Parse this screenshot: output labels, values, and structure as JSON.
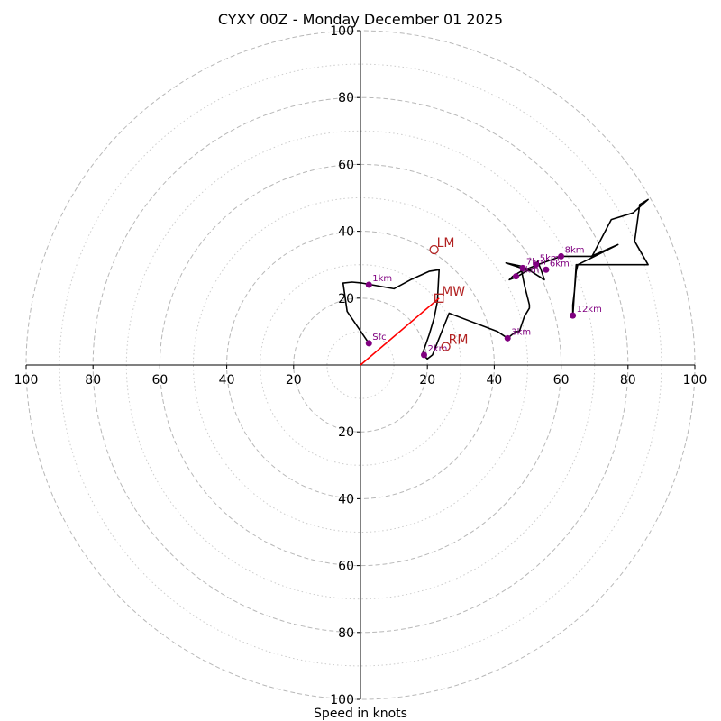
{
  "chart_data": {
    "type": "line",
    "title": "CYXY 00Z - Monday December 01 2025",
    "xlabel": "Speed in knots",
    "ylabel": "",
    "axis_range": [
      -100,
      100
    ],
    "ring_major": [
      20,
      40,
      60,
      80,
      100
    ],
    "ring_minor": [
      10,
      30,
      50,
      70,
      90
    ],
    "tick_labels_x": [
      "100",
      "80",
      "60",
      "40",
      "20",
      "20",
      "40",
      "60",
      "80",
      "100"
    ],
    "tick_values_x": [
      -100,
      -80,
      -60,
      -40,
      -20,
      20,
      40,
      60,
      80,
      100
    ],
    "tick_labels_y": [
      "100",
      "80",
      "60",
      "40",
      "20",
      "20",
      "40",
      "60",
      "80",
      "100"
    ],
    "tick_values_y": [
      100,
      80,
      60,
      40,
      20,
      -20,
      -40,
      -60,
      -80,
      -100
    ],
    "grid": true,
    "hodograph": {
      "color": "#000000",
      "points": [
        [
          2.5,
          6.5
        ],
        [
          -4,
          16
        ],
        [
          -5.2,
          24.5
        ],
        [
          -2.5,
          24.8
        ],
        [
          0.5,
          24.5
        ],
        [
          10,
          22.8
        ],
        [
          15,
          25.5
        ],
        [
          20.5,
          28
        ],
        [
          23.5,
          28.5
        ],
        [
          23,
          19
        ],
        [
          22,
          14
        ],
        [
          20.5,
          9
        ],
        [
          18.5,
          3.2
        ],
        [
          20,
          1.8
        ],
        [
          21.5,
          3
        ],
        [
          26.5,
          15.5
        ],
        [
          41,
          10
        ],
        [
          44,
          8
        ],
        [
          46.5,
          10
        ],
        [
          47.5,
          10
        ],
        [
          49,
          14.5
        ],
        [
          50.5,
          17
        ],
        [
          50.5,
          18
        ],
        [
          49,
          24
        ],
        [
          48,
          29
        ],
        [
          43.5,
          30.5
        ],
        [
          48.5,
          29.5
        ],
        [
          51,
          28
        ],
        [
          55,
          25.5
        ],
        [
          54,
          28.5
        ],
        [
          53,
          31
        ],
        [
          52,
          29
        ],
        [
          49.5,
          28
        ],
        [
          47,
          26.5
        ],
        [
          44.5,
          25.5
        ],
        [
          45.5,
          26.5
        ],
        [
          48,
          28
        ],
        [
          53,
          30
        ],
        [
          60,
          32.5
        ],
        [
          69,
          32.5
        ],
        [
          77,
          36
        ],
        [
          69,
          32
        ],
        [
          65,
          30
        ],
        [
          64.5,
          28
        ],
        [
          64,
          22
        ],
        [
          63.5,
          18
        ],
        [
          63.5,
          14.5
        ],
        [
          64.5,
          30
        ],
        [
          73,
          30
        ],
        [
          86,
          30
        ],
        [
          82,
          37
        ],
        [
          83.5,
          48
        ],
        [
          86,
          49.5
        ],
        [
          81.5,
          45.5
        ],
        [
          75,
          43.5
        ],
        [
          69,
          32
        ]
      ]
    },
    "height_markers": [
      {
        "label": "Sfc",
        "x": 2.5,
        "y": 6.5
      },
      {
        "label": "1km",
        "x": 2.5,
        "y": 24
      },
      {
        "label": "2km",
        "x": 19,
        "y": 3
      },
      {
        "label": "3km",
        "x": 44,
        "y": 8
      },
      {
        "label": "4km",
        "x": 46.5,
        "y": 26.5
      },
      {
        "label": "5km",
        "x": 52.5,
        "y": 30
      },
      {
        "label": "6km",
        "x": 55.5,
        "y": 28.5
      },
      {
        "label": "7km",
        "x": 48.5,
        "y": 29
      },
      {
        "label": "8km",
        "x": 60,
        "y": 32.5
      },
      {
        "label": "12km",
        "x": 63.5,
        "y": 14.8
      }
    ],
    "marker_color": "#800080",
    "storm_motion": {
      "color": "#b22222",
      "vector_color": "#ff0000",
      "points": [
        {
          "label": "LM",
          "x": 22,
          "y": 34.5,
          "shape": "circle"
        },
        {
          "label": "MW",
          "x": 23.5,
          "y": 20,
          "shape": "square"
        },
        {
          "label": "RM",
          "x": 25.5,
          "y": 5.5,
          "shape": "circle"
        }
      ],
      "vector_to": "MW"
    }
  }
}
